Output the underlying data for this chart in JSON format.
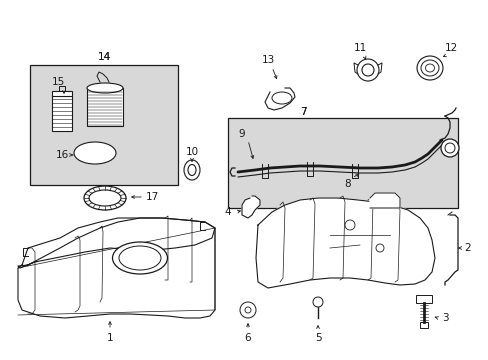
{
  "bg_color": "#ffffff",
  "line_color": "#1a1a1a",
  "shade_color": "#d8d8d8",
  "fig_width": 4.89,
  "fig_height": 3.6,
  "dpi": 100
}
